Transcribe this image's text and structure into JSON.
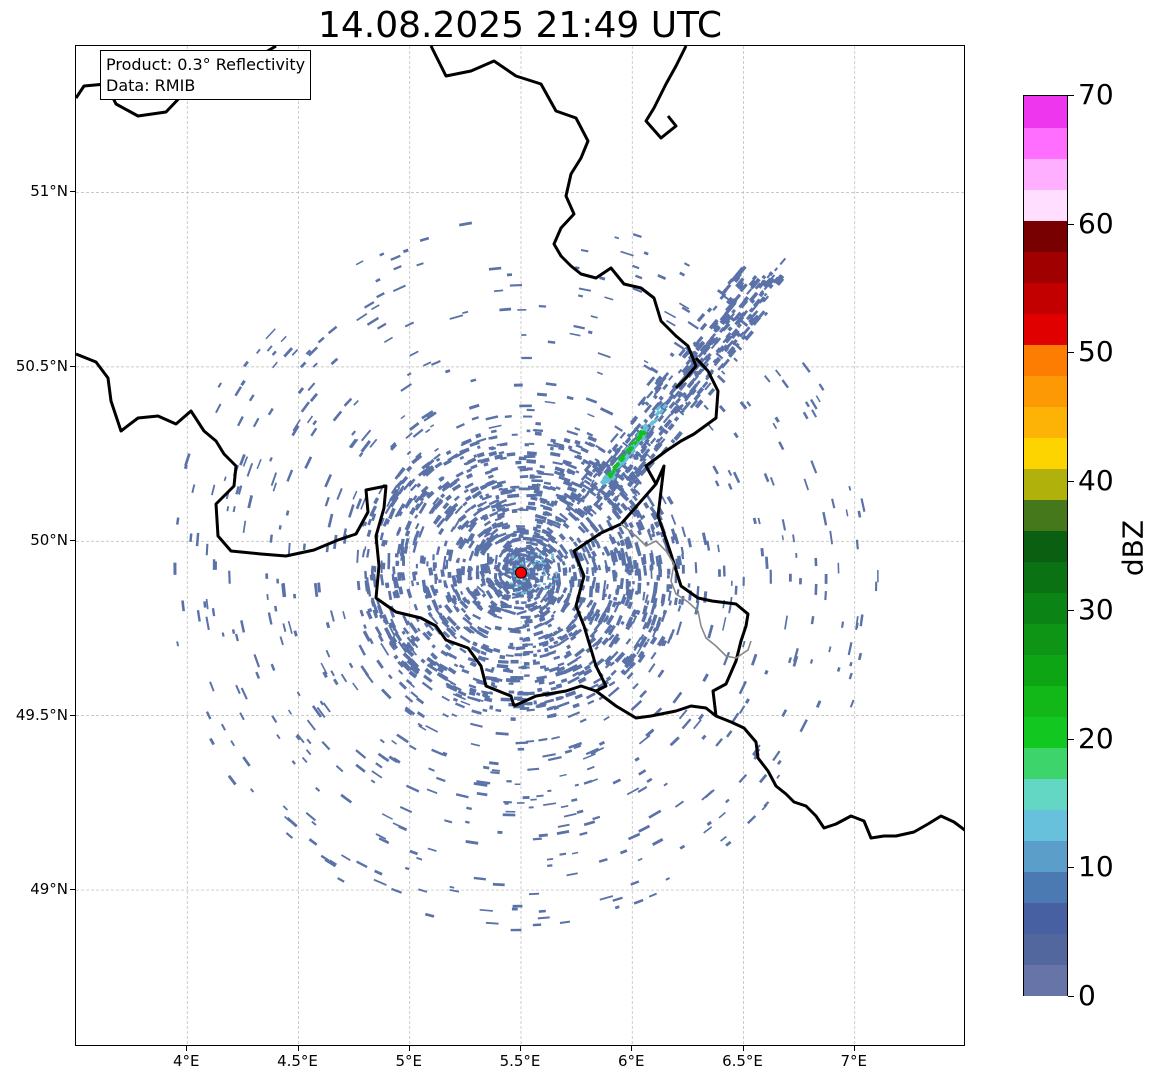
{
  "title": "14.08.2025 21:49 UTC",
  "info": {
    "product": "Product: 0.3° Reflectivity",
    "data": "Data: RMIB"
  },
  "map": {
    "lon_range": [
      3.5,
      7.5
    ],
    "lat_range": [
      48.55,
      51.42
    ],
    "x_ticks": [
      {
        "value": 4.0,
        "label": "4°E"
      },
      {
        "value": 4.5,
        "label": "4.5°E"
      },
      {
        "value": 5.0,
        "label": "5°E"
      },
      {
        "value": 5.5,
        "label": "5.5°E"
      },
      {
        "value": 6.0,
        "label": "6°E"
      },
      {
        "value": 6.5,
        "label": "6.5°E"
      },
      {
        "value": 7.0,
        "label": "7°E"
      }
    ],
    "y_ticks": [
      {
        "value": 51.0,
        "label": "51°N"
      },
      {
        "value": 50.5,
        "label": "50.5°N"
      },
      {
        "value": 50.0,
        "label": "50°N"
      },
      {
        "value": 49.5,
        "label": "49.5°N"
      },
      {
        "value": 49.0,
        "label": "49°N"
      }
    ],
    "gridlines": true,
    "radar_site": {
      "lon": 5.5,
      "lat": 49.91,
      "color": "#ff0000"
    },
    "echo_colors": {
      "weak": "#5a72a8",
      "light": "#65c0d8",
      "moderate": "#14c01f"
    }
  },
  "colorbar": {
    "unit": "dBZ",
    "min": 0,
    "max": 70,
    "ticks": [
      "0",
      "10",
      "20",
      "30",
      "40",
      "50",
      "60",
      "70"
    ],
    "colors": [
      "#6674a8",
      "#51679e",
      "#4660a2",
      "#4a7ab1",
      "#5b9ec9",
      "#67c0dc",
      "#64d6c4",
      "#3dd46b",
      "#12c71f",
      "#12b818",
      "#0ea515",
      "#0f9515",
      "#0c8415",
      "#0a7212",
      "#0a5f10",
      "#45781a",
      "#b0b10b",
      "#fed400",
      "#fdb306",
      "#fd9904",
      "#fd7d02",
      "#e00000",
      "#c20000",
      "#a10000",
      "#780000",
      "#ffdeff",
      "#ffafff",
      "#ff6eff",
      "#ee36ef"
    ]
  }
}
